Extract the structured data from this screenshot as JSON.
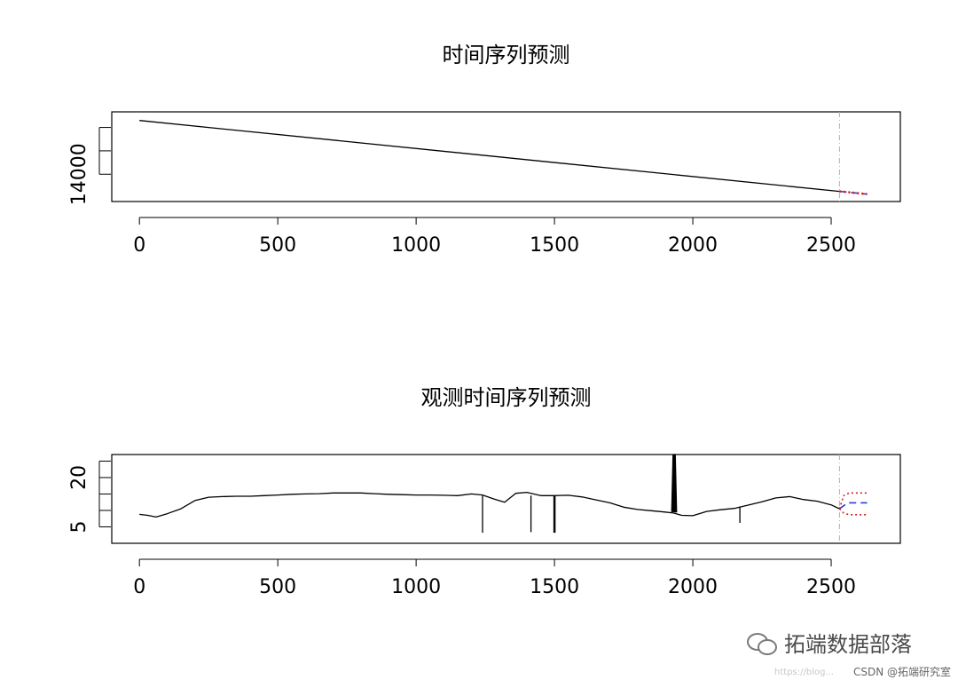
{
  "chart_data": [
    {
      "type": "line",
      "title": "时间序列预测",
      "xlabel": "",
      "ylabel": "",
      "xlim": [
        -100,
        2750
      ],
      "ylim": [
        13650,
        14800
      ],
      "x_ticks": [
        0,
        500,
        1000,
        1500,
        2000,
        2500
      ],
      "y_ticks": [
        14000,
        14300,
        14600
      ],
      "y_tick_labels_shown": [
        "14000"
      ],
      "series": [
        {
          "style": "solid-black",
          "x": [
            0,
            2530
          ],
          "y": [
            14690,
            13780
          ]
        },
        {
          "style": "dashed-blue",
          "x": [
            2530,
            2630
          ],
          "y": [
            13780,
            13745
          ]
        },
        {
          "style": "dotted-red",
          "x": [
            2530,
            2630
          ],
          "y": [
            13775,
            13740
          ]
        },
        {
          "style": "dotted-red",
          "x": [
            2530,
            2630
          ],
          "y": [
            13785,
            13750
          ]
        }
      ],
      "forecast_origin": 2530,
      "colors": {
        "actual": "#000000",
        "forecast": "#2a3fd8",
        "interval": "#d62020",
        "divider": "#b0b0b0"
      }
    },
    {
      "type": "line",
      "title": "观测时间序列预测",
      "xlabel": "",
      "ylabel": "",
      "xlim": [
        -100,
        2750
      ],
      "ylim": [
        0,
        27
      ],
      "x_ticks": [
        0,
        500,
        1000,
        1500,
        2000,
        2500
      ],
      "y_ticks": [
        5,
        10,
        15,
        20,
        25
      ],
      "y_tick_labels_shown": [
        "5",
        "20"
      ],
      "series": [
        {
          "style": "solid-black",
          "x": [
            0,
            30,
            60,
            100,
            150,
            200,
            250,
            300,
            350,
            400,
            450,
            500,
            550,
            600,
            650,
            700,
            750,
            800,
            850,
            900,
            950,
            1000,
            1050,
            1100,
            1150,
            1200,
            1240,
            1280,
            1320,
            1360,
            1400,
            1450,
            1500,
            1550,
            1600,
            1650,
            1700,
            1750,
            1800,
            1850,
            1900,
            1930,
            1960,
            2000,
            2050,
            2100,
            2150,
            2200,
            2250,
            2300,
            2350,
            2400,
            2450,
            2500,
            2530
          ],
          "y": [
            8.8,
            8.5,
            8,
            9,
            10.5,
            13,
            14,
            14.2,
            14.3,
            14.3,
            14.5,
            14.7,
            14.9,
            15,
            15.1,
            15.3,
            15.3,
            15.3,
            15.1,
            14.9,
            14.8,
            14.7,
            14.7,
            14.6,
            14.5,
            15,
            14.7,
            13.5,
            12.5,
            15.2,
            15.5,
            14.5,
            14.5,
            14.6,
            14.1,
            13.2,
            12.3,
            11,
            10.3,
            9.9,
            9.5,
            9.2,
            8.5,
            8.4,
            9.7,
            10.2,
            10.6,
            11.6,
            12.6,
            13.8,
            14.2,
            13.3,
            12.8,
            11.7,
            10.5
          ]
        },
        {
          "style": "spike-down",
          "x": [
            1240,
            1240
          ],
          "y": [
            14.5,
            3.2
          ]
        },
        {
          "style": "spike-down",
          "x": [
            1415,
            1415
          ],
          "y": [
            14.5,
            3.4
          ]
        },
        {
          "style": "spike-down",
          "x": [
            1498,
            1498
          ],
          "y": [
            14.6,
            3.2
          ]
        },
        {
          "style": "spike-down",
          "x": [
            1502,
            1502
          ],
          "y": [
            14.5,
            3.2
          ]
        },
        {
          "style": "spike-down",
          "x": [
            2170,
            2170
          ],
          "y": [
            11.2,
            6.2
          ]
        },
        {
          "style": "spike-up",
          "x": [
            1925,
            1930,
            1935,
            1940
          ],
          "y": [
            9.5,
            26.8,
            26.9,
            9.4
          ]
        },
        {
          "style": "dashed-blue",
          "x": [
            2530,
            2560,
            2630
          ],
          "y": [
            10.5,
            12.3,
            12.3
          ]
        },
        {
          "style": "dotted-red",
          "x": [
            2530,
            2545,
            2565,
            2630
          ],
          "y": [
            10.5,
            14.5,
            15.3,
            15.3
          ]
        },
        {
          "style": "dotted-red",
          "x": [
            2530,
            2545,
            2565,
            2630
          ],
          "y": [
            10.5,
            9.2,
            8.7,
            8.7
          ]
        }
      ],
      "forecast_origin": 2530,
      "colors": {
        "actual": "#000000",
        "forecast": "#2a3fd8",
        "interval": "#d62020",
        "divider": "#b0b0b0"
      }
    }
  ],
  "watermark": {
    "brand": "拓端数据部落",
    "icon": "wechat-icon",
    "sub": "CSDN @拓端研究室",
    "faint": "https://blog..."
  }
}
